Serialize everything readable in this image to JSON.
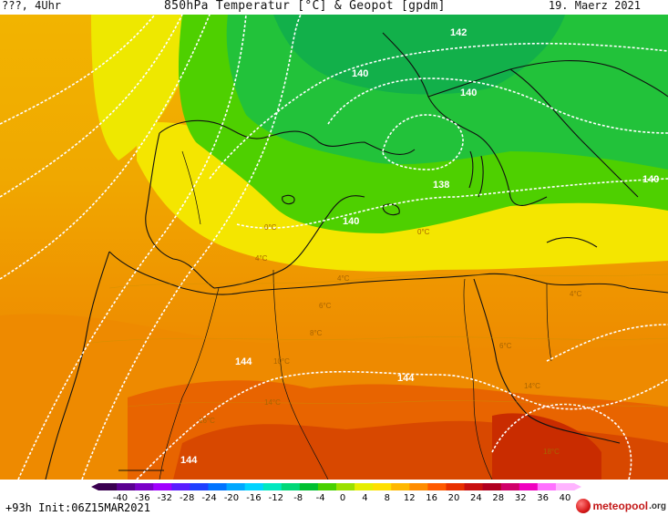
{
  "header": {
    "left_text": "???, 4Uhr",
    "title": "850hPa Temperatur [°C] & Geopot [gpdm]",
    "date": "19. Maerz 2021"
  },
  "footer": {
    "run_info": "+93h  Init:06Z15MAR2021",
    "logo_text": "meteopool",
    "logo_tld": ".org"
  },
  "colorbar": {
    "ticks": [
      "-40",
      "-36",
      "-32",
      "-28",
      "-24",
      "-20",
      "-16",
      "-12",
      "-8",
      "-4",
      "0",
      "4",
      "8",
      "12",
      "16",
      "20",
      "24",
      "28",
      "32",
      "36",
      "40"
    ],
    "colors": [
      "#3a0050",
      "#5a0090",
      "#7a00c8",
      "#a000ff",
      "#5a1cff",
      "#1f3fff",
      "#0074ff",
      "#00a8ff",
      "#00d4ff",
      "#00e8c0",
      "#00d878",
      "#00c030",
      "#48d000",
      "#9ae000",
      "#e6ee00",
      "#ffe000",
      "#ffb800",
      "#ff8c00",
      "#ff5a00",
      "#e83000",
      "#c81010",
      "#b00020",
      "#d0006a",
      "#f000c0",
      "#ff70ff",
      "#ffb4ff"
    ]
  },
  "map": {
    "geopotential_labels": [
      {
        "text": "142",
        "key": "g1"
      },
      {
        "text": "140",
        "key": "g2"
      },
      {
        "text": "140",
        "key": "g3"
      },
      {
        "text": "140",
        "key": "g4"
      },
      {
        "text": "138",
        "key": "g5"
      },
      {
        "text": "140",
        "key": "g6"
      },
      {
        "text": "144",
        "key": "g7"
      },
      {
        "text": "144",
        "key": "g8"
      },
      {
        "text": "144",
        "key": "g9"
      }
    ],
    "temperature_labels": [
      {
        "text": "0°C",
        "key": "t1"
      },
      {
        "text": "0°C",
        "key": "t2"
      },
      {
        "text": "4°C",
        "key": "t3"
      },
      {
        "text": "4°C",
        "key": "t4"
      },
      {
        "text": "6°C",
        "key": "t5"
      },
      {
        "text": "8°C",
        "key": "t6"
      },
      {
        "text": "10°C",
        "key": "t7"
      },
      {
        "text": "14°C",
        "key": "t8"
      },
      {
        "text": "16°C",
        "key": "t9"
      },
      {
        "text": "14°C",
        "key": "t10"
      },
      {
        "text": "18°C",
        "key": "t11"
      },
      {
        "text": "4°C",
        "key": "t12"
      },
      {
        "text": "6°C",
        "key": "t13"
      }
    ]
  }
}
